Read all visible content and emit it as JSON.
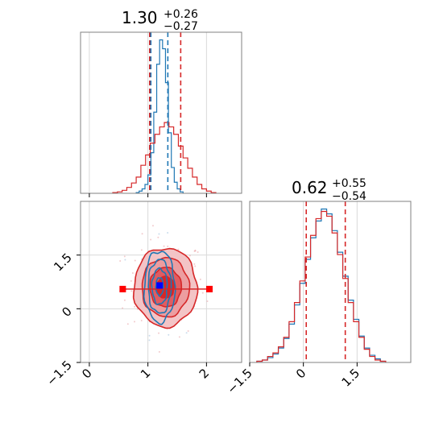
{
  "chart_data": [
    {
      "panel": "marginal-param-1",
      "type": "step-histogram",
      "title": {
        "value": "1.30",
        "sup": "+0.26",
        "sub": "−0.27"
      },
      "xlim": [
        -0.15,
        2.6
      ],
      "x_ticks": [
        0,
        1,
        2
      ],
      "grid": true,
      "quantile_lines": {
        "red": [
          1.03,
          1.56
        ],
        "blue": [
          1.05,
          1.34
        ]
      },
      "series": [
        {
          "color": "#1f77b4",
          "bin_edges": [
            0.8,
            0.85,
            0.9,
            0.95,
            1.0,
            1.05,
            1.1,
            1.15,
            1.2,
            1.25,
            1.3,
            1.35,
            1.4,
            1.45,
            1.5,
            1.55,
            1.6
          ],
          "counts": [
            1,
            3,
            6,
            12,
            25,
            55,
            110,
            175,
            208,
            196,
            150,
            82,
            35,
            15,
            6,
            2
          ]
        },
        {
          "color": "#d62728",
          "bin_edges": [
            0.4,
            0.48,
            0.56,
            0.64,
            0.72,
            0.8,
            0.88,
            0.96,
            1.04,
            1.12,
            1.2,
            1.28,
            1.36,
            1.44,
            1.52,
            1.6,
            1.68,
            1.76,
            1.84,
            1.92,
            2.0,
            2.08,
            2.16
          ],
          "counts": [
            1,
            2,
            4,
            8,
            14,
            22,
            38,
            52,
            68,
            80,
            90,
            96,
            90,
            80,
            64,
            48,
            34,
            22,
            12,
            6,
            3,
            1
          ]
        }
      ]
    },
    {
      "panel": "joint",
      "type": "contour",
      "xlim": [
        -0.15,
        2.6
      ],
      "ylim": [
        -1.5,
        3.0
      ],
      "x_ticks": [
        0,
        1,
        2
      ],
      "y_ticks": [
        -1.5,
        0.0,
        1.5
      ],
      "grid": true,
      "red_cloud": {
        "center": [
          1.3,
          0.6
        ],
        "sigma": [
          0.27,
          0.55
        ]
      },
      "blue_cloud": {
        "center": [
          1.2,
          0.62
        ],
        "sigma": [
          0.13,
          0.5
        ]
      },
      "red_errorbar": {
        "x": [
          0.57,
          2.05
        ],
        "y": 0.55
      },
      "blue_marker": {
        "x": 1.2,
        "y": 0.65
      }
    },
    {
      "panel": "marginal-param-2",
      "type": "step-histogram",
      "title": {
        "value": "0.62",
        "sup": "+0.55",
        "sub": "−0.54"
      },
      "xlim": [
        -1.5,
        3.0
      ],
      "x_ticks": [
        -1.5,
        0.0,
        1.5
      ],
      "grid": true,
      "quantile_lines": {
        "red": [
          0.08,
          1.17
        ]
      },
      "series": [
        {
          "color": "#1f77b4",
          "bin_edges": [
            -1.3,
            -1.15,
            -1.0,
            -0.85,
            -0.7,
            -0.55,
            -0.4,
            -0.25,
            -0.1,
            0.05,
            0.2,
            0.35,
            0.5,
            0.65,
            0.8,
            0.95,
            1.1,
            1.25,
            1.4,
            1.55,
            1.7,
            1.85,
            2.0,
            2.15,
            2.3
          ],
          "counts": [
            1,
            2,
            4,
            7,
            12,
            20,
            32,
            48,
            66,
            86,
            104,
            118,
            128,
            124,
            110,
            92,
            72,
            52,
            36,
            22,
            12,
            6,
            3,
            1
          ]
        },
        {
          "color": "#d62728",
          "bin_edges": [
            -1.3,
            -1.15,
            -1.0,
            -0.85,
            -0.7,
            -0.55,
            -0.4,
            -0.25,
            -0.1,
            0.05,
            0.2,
            0.35,
            0.5,
            0.65,
            0.8,
            0.95,
            1.1,
            1.25,
            1.4,
            1.55,
            1.7,
            1.85,
            2.0,
            2.15,
            2.3
          ],
          "counts": [
            1,
            2,
            5,
            8,
            13,
            21,
            34,
            50,
            68,
            88,
            106,
            120,
            126,
            122,
            108,
            90,
            70,
            50,
            34,
            21,
            11,
            5,
            2,
            1
          ]
        }
      ]
    }
  ]
}
